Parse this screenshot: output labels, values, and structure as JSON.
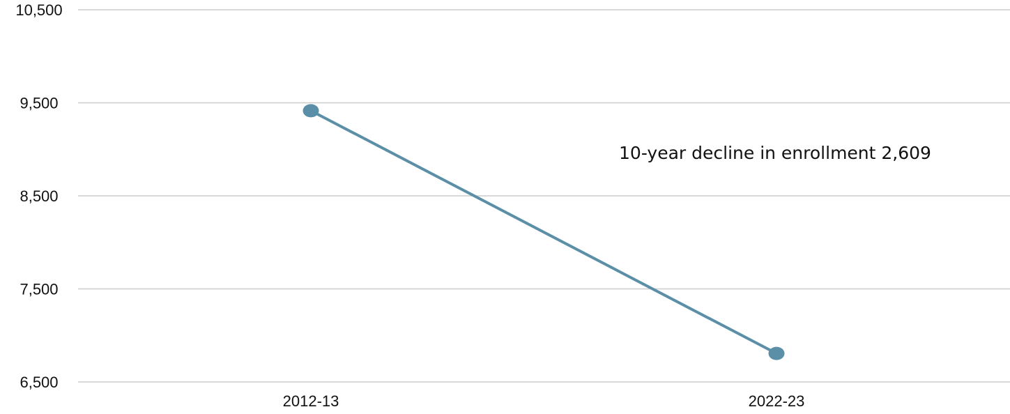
{
  "chart_data": {
    "type": "line",
    "title": "",
    "xlabel": "",
    "ylabel": "",
    "categories": [
      "2012-13",
      "2022-23"
    ],
    "series": [
      {
        "values": [
          9415,
          6806
        ],
        "color": "#5b8fa8"
      }
    ],
    "ylim": [
      6500,
      10500
    ],
    "yticks": [
      6500,
      7500,
      8500,
      9500,
      10500
    ],
    "ytick_labels": [
      "6,500",
      "7,500",
      "8,500",
      "9,500",
      "10,500"
    ],
    "grid": true,
    "legend": "none",
    "annotation": {
      "text": "10-year decline in enrollment 2,609"
    },
    "colors": {
      "line": "#5b8fa8",
      "grid": "#cccccc",
      "text": "#111111"
    }
  }
}
